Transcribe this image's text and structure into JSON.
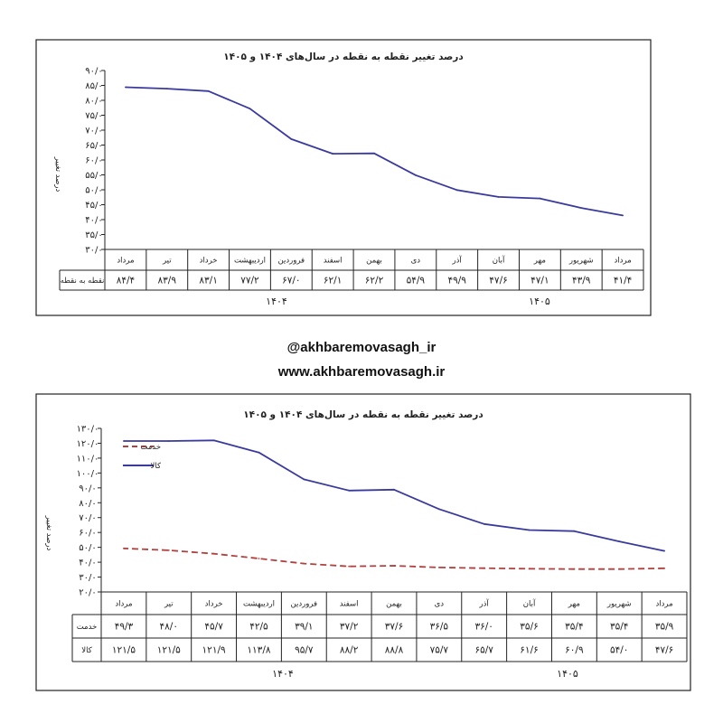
{
  "watermark": {
    "handle": "@akhbaremovasagh_ir",
    "website": "www.akhbaremovasagh.ir"
  },
  "chart_data": [
    {
      "type": "line",
      "title": "درصد تغییر نقطه به نقطه در سال‌های ۱۴۰۴ و ۱۴۰۵",
      "ylabel": "درصد تغییر",
      "ylim": [
        30,
        90
      ],
      "yticks": [
        "۹۰/۰",
        "۸۵/۰",
        "۸۰/۰",
        "۷۵/۰",
        "۷۰/۰",
        "۶۵/۰",
        "۶۰/۰",
        "۵۵/۰",
        "۵۰/۰",
        "۴۵/۰",
        "۴۰/۰",
        "۳۵/۰",
        "۳۰/۰"
      ],
      "categories": [
        "مرداد",
        "شهریور",
        "مهر",
        "آبان",
        "آذر",
        "دی",
        "بهمن",
        "اسفند",
        "فروردین",
        "اردیبهشت",
        "خرداد",
        "تیر",
        "مرداد"
      ],
      "series": [
        {
          "name": "نقطه به نقطه",
          "values": [
            41.4,
            43.9,
            47.1,
            47.6,
            49.9,
            54.9,
            62.2,
            62.1,
            67.0,
            77.2,
            83.1,
            83.9,
            84.4
          ],
          "labels": [
            "۴۱/۴",
            "۴۳/۹",
            "۴۷/۱",
            "۴۷/۶",
            "۴۹/۹",
            "۵۴/۹",
            "۶۲/۲",
            "۶۲/۱",
            "۶۷/۰",
            "۷۷/۲",
            "۸۳/۱",
            "۸۳/۹",
            "۸۴/۴"
          ],
          "color": "#3a3a9e",
          "style": "solid"
        }
      ],
      "years": [
        "۱۴۰۴",
        "۱۴۰۵"
      ],
      "legend": false,
      "grid": false
    },
    {
      "type": "line",
      "title": "درصد تغییر نقطه به نقطه در سال‌های ۱۴۰۴ و ۱۴۰۵",
      "ylabel": "درصد تغییر",
      "ylim": [
        20,
        130
      ],
      "yticks": [
        "۱۳۰/۰",
        "۱۲۰/۰",
        "۱۱۰/۰",
        "۱۰۰/۰",
        "۹۰/۰",
        "۸۰/۰",
        "۷۰/۰",
        "۶۰/۰",
        "۵۰/۰",
        "۴۰/۰",
        "۳۰/۰",
        "۲۰/۰"
      ],
      "categories": [
        "مرداد",
        "شهریور",
        "مهر",
        "آبان",
        "آذر",
        "دی",
        "بهمن",
        "اسفند",
        "فروردین",
        "اردیبهشت",
        "خرداد",
        "تیر",
        "مرداد"
      ],
      "series": [
        {
          "name": "خدمت",
          "values": [
            35.9,
            35.4,
            35.4,
            35.6,
            36.0,
            36.5,
            37.6,
            37.2,
            39.1,
            42.5,
            45.7,
            48.0,
            49.3
          ],
          "labels": [
            "۳۵/۹",
            "۳۵/۴",
            "۳۵/۴",
            "۳۵/۶",
            "۳۶/۰",
            "۳۶/۵",
            "۳۷/۶",
            "۳۷/۲",
            "۳۹/۱",
            "۴۲/۵",
            "۴۵/۷",
            "۴۸/۰",
            "۴۹/۳"
          ],
          "color": "#b0413e",
          "style": "dashed"
        },
        {
          "name": "کالا",
          "values": [
            47.6,
            54.0,
            60.9,
            61.6,
            65.7,
            75.7,
            88.8,
            88.2,
            95.7,
            113.8,
            121.9,
            121.5,
            121.5
          ],
          "labels": [
            "۴۷/۶",
            "۵۴/۰",
            "۶۰/۹",
            "۶۱/۶",
            "۶۵/۷",
            "۷۵/۷",
            "۸۸/۸",
            "۸۸/۲",
            "۹۵/۷",
            "۱۱۳/۸",
            "۱۲۱/۹",
            "۱۲۱/۵",
            "۱۲۱/۵"
          ],
          "color": "#3a3a9e",
          "style": "solid"
        }
      ],
      "years": [
        "۱۴۰۴",
        "۱۴۰۵"
      ],
      "legend": "top-left",
      "grid": false
    }
  ]
}
